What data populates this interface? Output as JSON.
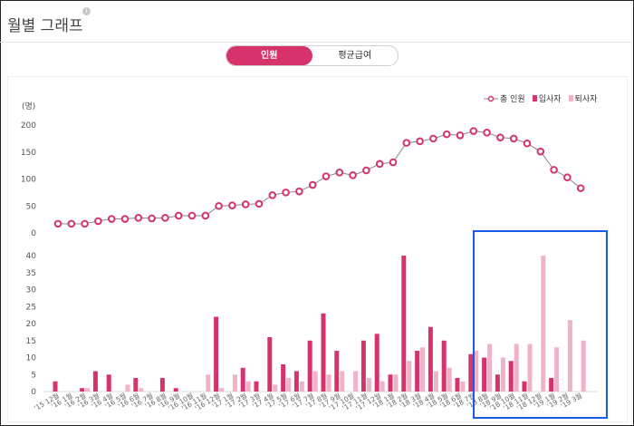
{
  "header": {
    "title": "월별 그래프",
    "info_icon": "info-icon"
  },
  "tabs": [
    {
      "label": "인원",
      "active": true
    },
    {
      "label": "평균급여",
      "active": false
    }
  ],
  "legend": [
    {
      "label": "총 인원",
      "color": "#d6336c",
      "kind": "line-marker"
    },
    {
      "label": "입사자",
      "color": "#d6336c",
      "kind": "bar"
    },
    {
      "label": "퇴사자",
      "color": "#f0b3c4",
      "kind": "bar"
    }
  ],
  "colors": {
    "accent": "#d6336c",
    "hire": "#d6336c",
    "leave": "#f0b3c4",
    "line": "#888888",
    "highlight": "#1a5be8"
  },
  "chart_data": [
    {
      "type": "line",
      "ylabel": "(명)",
      "ylim": [
        0,
        200
      ],
      "yticks": [
        0,
        50,
        100,
        150,
        200
      ],
      "categories": [
        "'15 12월",
        "'16 1월",
        "'16 2월",
        "'16 3월",
        "'16 4월",
        "'16 5월",
        "'16 6월",
        "'16 7월",
        "'16 8월",
        "'16 9월",
        "'16 10월",
        "'16 11월",
        "'16 12월",
        "'17 1월",
        "'17 2월",
        "'17 3월",
        "'17 4월",
        "'17 5월",
        "'17 6월",
        "'17 7월",
        "'17 8월",
        "'17 9월",
        "'17 10월",
        "'17 11월",
        "'17 12월",
        "'18 1월",
        "'18 2월",
        "'18 3월",
        "'18 4월",
        "'18 5월",
        "'18 6월",
        "'18 7월",
        "'18 8월",
        "'18 9월",
        "'18 10월",
        "'18 11월",
        "'18 12월",
        "'19 1월",
        "'19 2월",
        "'19 3월"
      ],
      "series": [
        {
          "name": "총 인원",
          "values": [
            17,
            17,
            17,
            22,
            26,
            26,
            28,
            27,
            28,
            32,
            32,
            32,
            50,
            51,
            53,
            54,
            70,
            75,
            77,
            89,
            105,
            112,
            107,
            116,
            128,
            131,
            167,
            170,
            175,
            183,
            181,
            189,
            186,
            177,
            175,
            166,
            151,
            117,
            103,
            83
          ]
        }
      ]
    },
    {
      "type": "bar",
      "ylim": [
        0,
        40
      ],
      "yticks": [
        0,
        5,
        10,
        15,
        20,
        25,
        30,
        35,
        40
      ],
      "categories": [
        "'15 12월",
        "'16 1월",
        "'16 2월",
        "'16 3월",
        "'16 4월",
        "'16 5월",
        "'16 6월",
        "'16 7월",
        "'16 8월",
        "'16 9월",
        "'16 10월",
        "'16 11월",
        "'16 12월",
        "'17 1월",
        "'17 2월",
        "'17 3월",
        "'17 4월",
        "'17 5월",
        "'17 6월",
        "'17 7월",
        "'17 8월",
        "'17 9월",
        "'17 10월",
        "'17 11월",
        "'17 12월",
        "'18 1월",
        "'18 2월",
        "'18 3월",
        "'18 4월",
        "'18 5월",
        "'18 6월",
        "'18 7월",
        "'18 8월",
        "'18 9월",
        "'18 10월",
        "'18 11월",
        "'18 12월",
        "'19 1월",
        "'19 2월",
        "'19 3월"
      ],
      "series": [
        {
          "name": "입사자",
          "values": [
            3,
            0,
            1,
            6,
            5,
            0,
            4,
            0,
            4,
            1,
            0,
            0,
            22,
            0,
            7,
            3,
            16,
            8,
            6,
            15,
            23,
            12,
            0,
            15,
            17,
            5,
            40,
            12,
            19,
            15,
            4,
            11,
            10,
            5,
            9,
            3,
            0,
            4,
            0,
            0
          ]
        },
        {
          "name": "퇴사자",
          "values": [
            0,
            0,
            1,
            0,
            0,
            2,
            1,
            0,
            0,
            0,
            0,
            5,
            1,
            5,
            3,
            0,
            2,
            4,
            3,
            6,
            5,
            6,
            6,
            4,
            3,
            5,
            9,
            13,
            6,
            7,
            3,
            12,
            14,
            10,
            14,
            14,
            40,
            13,
            21,
            15
          ]
        }
      ]
    }
  ]
}
